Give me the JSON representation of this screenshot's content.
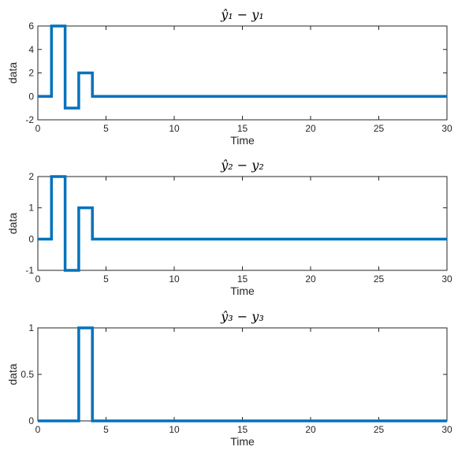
{
  "chart_data": [
    {
      "type": "line",
      "step": "stairs",
      "title": "ŷ₁ − y₁",
      "xlabel": "Time",
      "ylabel": "data",
      "xlim": [
        0,
        30
      ],
      "ylim": [
        -2,
        6
      ],
      "xticks": [
        0,
        5,
        10,
        15,
        20,
        25,
        30
      ],
      "yticks": [
        -2,
        0,
        2,
        4,
        6
      ],
      "color": "#0072BD",
      "series": [
        {
          "x": [
            0,
            1,
            1,
            2,
            2,
            3,
            3,
            4,
            4,
            30
          ],
          "y": [
            0,
            0,
            6,
            6,
            -1,
            -1,
            2,
            2,
            0,
            0
          ]
        }
      ]
    },
    {
      "type": "line",
      "step": "stairs",
      "title": "ŷ₂ − y₂",
      "xlabel": "Time",
      "ylabel": "data",
      "xlim": [
        0,
        30
      ],
      "ylim": [
        -1,
        2
      ],
      "xticks": [
        0,
        5,
        10,
        15,
        20,
        25,
        30
      ],
      "yticks": [
        -1,
        0,
        1,
        2
      ],
      "color": "#0072BD",
      "series": [
        {
          "x": [
            0,
            1,
            1,
            2,
            2,
            3,
            3,
            4,
            4,
            30
          ],
          "y": [
            0,
            0,
            2,
            2,
            -1,
            -1,
            1,
            1,
            0,
            0
          ]
        }
      ]
    },
    {
      "type": "line",
      "step": "stairs",
      "title": "ŷ₃ − y₃",
      "xlabel": "Time",
      "ylabel": "data",
      "xlim": [
        0,
        30
      ],
      "ylim": [
        0,
        1
      ],
      "xticks": [
        0,
        5,
        10,
        15,
        20,
        25,
        30
      ],
      "yticks": [
        0,
        0.5,
        1
      ],
      "color": "#0072BD",
      "series": [
        {
          "x": [
            0,
            3,
            3,
            4,
            4,
            30
          ],
          "y": [
            0,
            0,
            1,
            1,
            0,
            0
          ]
        }
      ]
    }
  ]
}
